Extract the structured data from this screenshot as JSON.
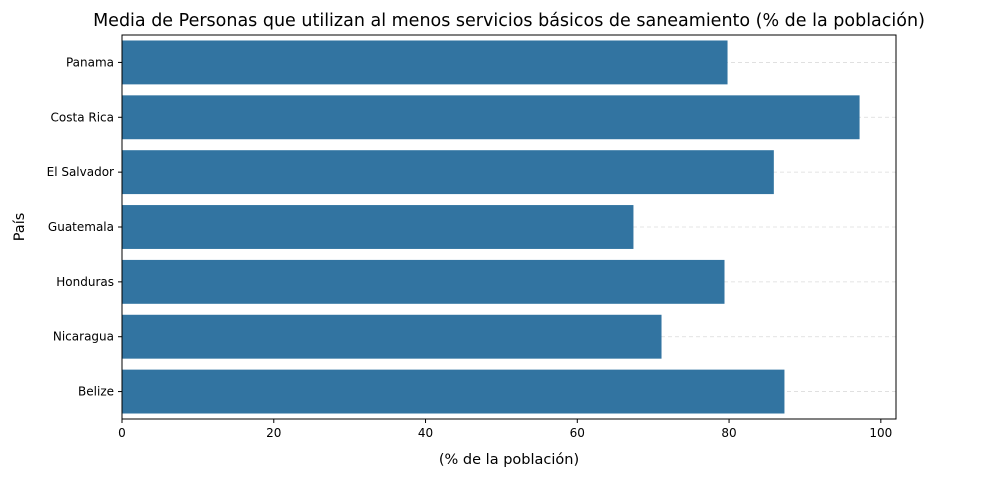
{
  "chart_data": {
    "type": "bar",
    "orientation": "horizontal",
    "title": "Media de Personas que utilizan al menos servicios básicos de saneamiento (% de la población)",
    "xlabel": "(% de la población)",
    "ylabel": "País",
    "categories": [
      "Panama",
      "Costa Rica",
      "El Salvador",
      "Guatemala",
      "Honduras",
      "Nicaragua",
      "Belize"
    ],
    "values": [
      79.8,
      97.2,
      85.9,
      67.4,
      79.4,
      71.1,
      87.3
    ],
    "xlim": [
      0,
      102
    ],
    "xticks": [
      0,
      20,
      40,
      60,
      80,
      100
    ],
    "bar_color": "#3274a1",
    "grid": "dashed horizontal",
    "legend": "none"
  }
}
